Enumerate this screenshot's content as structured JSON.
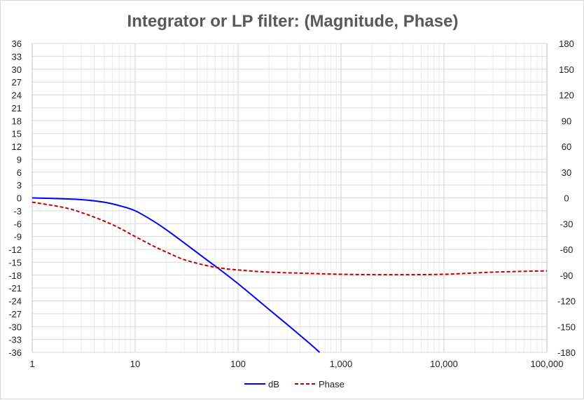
{
  "chart_data": {
    "type": "line",
    "title": "Integrator or LP filter: (Magnitude, Phase)",
    "x_scale": "log",
    "xlim": [
      1,
      100000
    ],
    "x_ticks": [
      1,
      10,
      100,
      1000,
      10000,
      100000
    ],
    "x_tick_labels": [
      "1",
      "10",
      "100",
      "1,000",
      "10,000",
      "100,000"
    ],
    "y_left": {
      "lim": [
        -36,
        36
      ],
      "ticks": [
        36,
        33,
        30,
        27,
        24,
        21,
        18,
        15,
        12,
        9,
        6,
        3,
        0,
        -3,
        -6,
        -9,
        -12,
        -15,
        -18,
        -21,
        -24,
        -27,
        -30,
        -33,
        -36
      ]
    },
    "y_right": {
      "lim": [
        -180,
        180
      ],
      "ticks": [
        180,
        150,
        120,
        90,
        60,
        30,
        0,
        -30,
        -60,
        -90,
        -120,
        -150,
        -180
      ]
    },
    "grid": true,
    "legend_position": "bottom",
    "series": [
      {
        "name": "dB",
        "axis": "left",
        "color": "#0000ff",
        "style": "solid",
        "x": [
          1,
          2,
          3,
          5,
          7,
          10,
          15,
          20,
          30,
          50,
          70,
          100,
          150,
          200,
          300,
          500,
          620
        ],
        "y": [
          0,
          -0.2,
          -0.4,
          -1.0,
          -1.8,
          -3.0,
          -5.4,
          -7.4,
          -10.5,
          -14.5,
          -17.1,
          -20.0,
          -23.5,
          -26.0,
          -29.5,
          -34.0,
          -36.0
        ]
      },
      {
        "name": "Phase",
        "axis": "right",
        "color": "#c00000",
        "style": "dashed",
        "x": [
          1,
          2,
          3,
          5,
          7,
          10,
          15,
          20,
          30,
          50,
          70,
          100,
          200,
          500,
          1000,
          3000,
          10000,
          30000,
          100000
        ],
        "y": [
          -5,
          -11,
          -17,
          -27,
          -35,
          -45,
          -56,
          -63,
          -72,
          -79,
          -82,
          -84,
          -86.5,
          -88,
          -89,
          -89.5,
          -89,
          -86.5,
          -85
        ]
      }
    ]
  }
}
